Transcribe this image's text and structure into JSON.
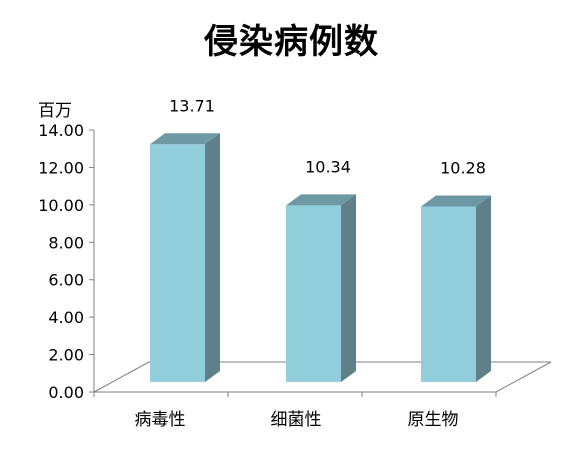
{
  "chart_data": {
    "type": "bar",
    "title": "侵染病例数",
    "unit_label": "百万",
    "categories": [
      "病毒性",
      "细菌性",
      "原生物"
    ],
    "values": [
      13.71,
      10.34,
      10.28
    ],
    "data_labels": [
      "13.71",
      "10.34",
      "10.28"
    ],
    "yticks": [
      "0.00",
      "2.00",
      "4.00",
      "6.00",
      "8.00",
      "10.00",
      "12.00",
      "14.00"
    ],
    "ylim": [
      0,
      14
    ],
    "grid": false,
    "legend": "none",
    "style": "3d-column"
  },
  "colors": {
    "bar_front": "#92CDDC",
    "bar_top": "#6E99A4",
    "bar_side": "#5F8088",
    "axis": "#808080"
  }
}
